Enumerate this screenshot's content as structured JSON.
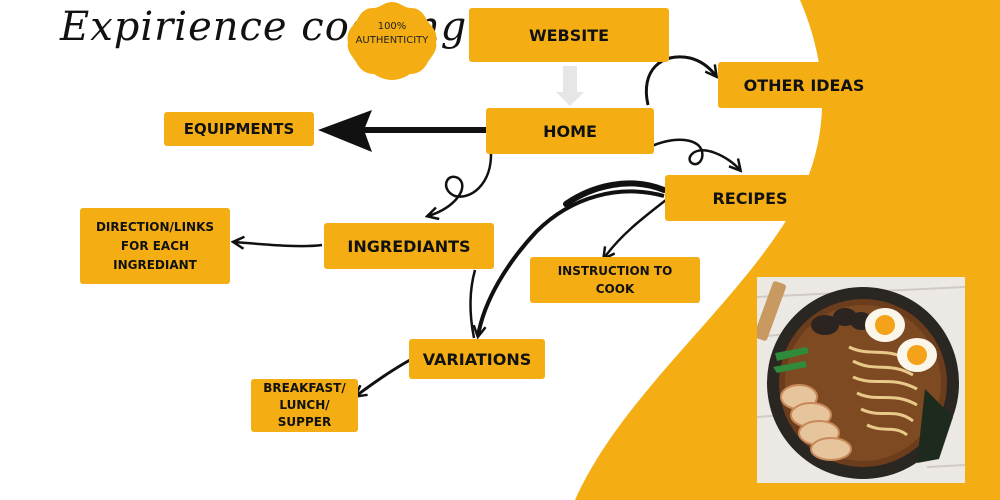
{
  "header": {
    "title": "Expirience cooking",
    "badge_line1": "100%",
    "badge_line2": "AUTHENTICITY"
  },
  "nodes": {
    "website": "WEBSITE",
    "other_ideas": "OTHER IDEAS",
    "home": "HOME",
    "equipments": "EQUIPMENTS",
    "recipes": "RECIPES",
    "ingredients": "INGREDIANTS",
    "directions": "DIRECTION/LINKS FOR EACH INGREDIANT",
    "instruction": "INSTRUCTION TO COOK",
    "variations": "VARIATIONS",
    "meals": "BREAKFAST/ LUNCH/ SUPPER"
  },
  "colors": {
    "accent": "#f4ae14",
    "ink": "#111111",
    "background": "#ffffff"
  },
  "image": {
    "subject": "ramen-bowl-photo"
  }
}
